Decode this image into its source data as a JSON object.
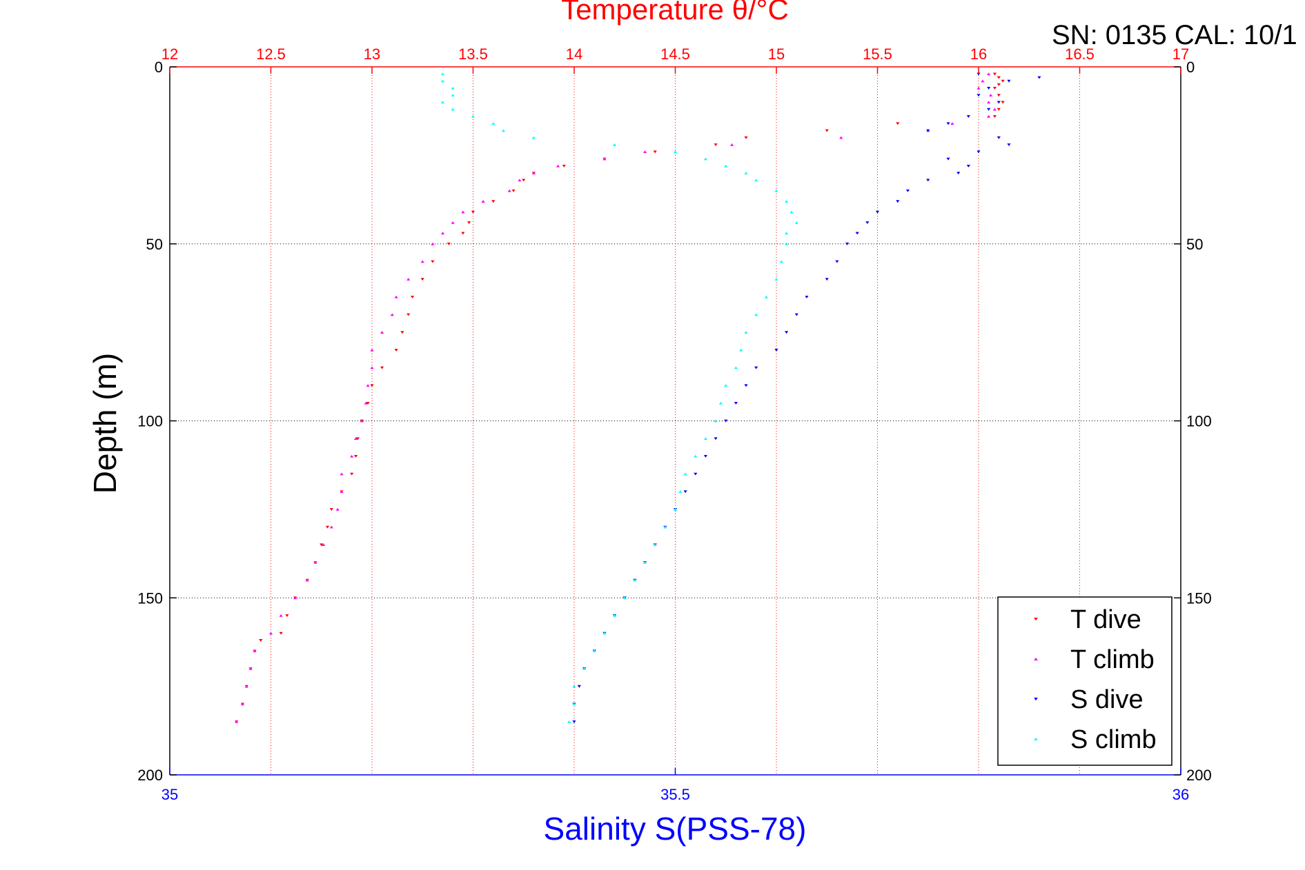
{
  "colors": {
    "temperature_axis": "#ff0000",
    "salinity_axis": "#0000ff",
    "depth_axis": "#000000",
    "t_dive": "#ff0000",
    "t_climb": "#ff00ff",
    "s_dive": "#0000ff",
    "s_climb": "#00ffff"
  },
  "chart_data": {
    "type": "scatter",
    "title": "Temperature θ/°C",
    "corner_label": "SN: 0135  CAL: 10/1",
    "xlabel_top": "Temperature θ/°C",
    "xlabel_bottom": "Salinity S(PSS-78)",
    "ylabel": "Depth (m)",
    "x_top_range": [
      12,
      17
    ],
    "x_top_ticks": [
      "12",
      "12.5",
      "13",
      "13.5",
      "14",
      "14.5",
      "15",
      "15.5",
      "16",
      "16.5",
      "17"
    ],
    "x_bottom_range": [
      35,
      36
    ],
    "x_bottom_ticks": [
      "35",
      "35.5",
      "36"
    ],
    "y_range": [
      0,
      200
    ],
    "y_reversed": true,
    "y_ticks": [
      "0",
      "50",
      "100",
      "150",
      "200"
    ],
    "grid": true,
    "legend_position": "bottom-right",
    "legend": [
      "T dive",
      "T climb",
      "S dive",
      "S climb"
    ],
    "series": [
      {
        "name": "T dive",
        "axis": "temperature",
        "marker": "triangle-down",
        "depth": [
          2,
          3,
          4,
          5,
          6,
          8,
          10,
          12,
          14,
          16,
          18,
          20,
          22,
          24,
          26,
          28,
          30,
          32,
          35,
          38,
          41,
          44,
          47,
          50,
          55,
          60,
          65,
          70,
          75,
          80,
          85,
          90,
          95,
          100,
          105,
          110,
          115,
          120,
          125,
          130,
          135,
          140,
          145,
          150,
          155,
          160,
          162,
          165,
          170,
          175,
          180,
          185
        ],
        "value": [
          16.08,
          16.1,
          16.12,
          16.1,
          16.08,
          16.1,
          16.12,
          16.1,
          16.08,
          15.6,
          15.25,
          14.85,
          14.7,
          14.4,
          14.15,
          13.95,
          13.8,
          13.75,
          13.7,
          13.6,
          13.5,
          13.48,
          13.45,
          13.38,
          13.3,
          13.25,
          13.2,
          13.18,
          13.15,
          13.12,
          13.05,
          13.0,
          12.98,
          12.95,
          12.93,
          12.92,
          12.9,
          12.85,
          12.8,
          12.78,
          12.75,
          12.72,
          12.68,
          12.62,
          12.58,
          12.55,
          12.45,
          12.42,
          12.4,
          12.38,
          12.36,
          12.33
        ]
      },
      {
        "name": "T climb",
        "axis": "temperature",
        "marker": "triangle-up",
        "depth": [
          185,
          180,
          175,
          170,
          165,
          160,
          155,
          150,
          145,
          140,
          135,
          130,
          125,
          120,
          115,
          110,
          105,
          100,
          95,
          90,
          85,
          80,
          75,
          70,
          65,
          60,
          55,
          50,
          47,
          44,
          41,
          38,
          35,
          32,
          30,
          28,
          26,
          24,
          22,
          20,
          18,
          16,
          14,
          12,
          10,
          8,
          6,
          4,
          2
        ],
        "value": [
          12.33,
          12.36,
          12.38,
          12.4,
          12.42,
          12.5,
          12.55,
          12.62,
          12.68,
          12.72,
          12.76,
          12.8,
          12.83,
          12.85,
          12.85,
          12.9,
          12.92,
          12.95,
          12.97,
          12.98,
          13.0,
          13.0,
          13.05,
          13.1,
          13.12,
          13.18,
          13.25,
          13.3,
          13.35,
          13.4,
          13.45,
          13.55,
          13.68,
          13.73,
          13.8,
          13.92,
          14.15,
          14.35,
          14.78,
          15.32,
          15.75,
          15.87,
          16.05,
          16.08,
          16.05,
          16.06,
          16.0,
          16.02,
          16.05
        ]
      },
      {
        "name": "S dive",
        "axis": "salinity",
        "marker": "triangle-down",
        "depth": [
          2,
          3,
          4,
          6,
          8,
          10,
          12,
          14,
          16,
          18,
          20,
          22,
          24,
          26,
          28,
          30,
          32,
          35,
          38,
          41,
          44,
          47,
          50,
          55,
          60,
          65,
          70,
          75,
          80,
          85,
          90,
          95,
          100,
          105,
          110,
          115,
          120,
          125,
          130,
          135,
          140,
          145,
          150,
          155,
          160,
          165,
          170,
          175,
          180,
          185
        ],
        "value": [
          35.8,
          35.86,
          35.83,
          35.81,
          35.8,
          35.82,
          35.81,
          35.79,
          35.77,
          35.75,
          35.82,
          35.83,
          35.8,
          35.77,
          35.79,
          35.78,
          35.75,
          35.73,
          35.72,
          35.7,
          35.69,
          35.68,
          35.67,
          35.66,
          35.65,
          35.63,
          35.62,
          35.61,
          35.6,
          35.58,
          35.57,
          35.56,
          35.55,
          35.54,
          35.53,
          35.52,
          35.51,
          35.5,
          35.49,
          35.48,
          35.47,
          35.46,
          35.45,
          35.44,
          35.43,
          35.42,
          35.41,
          35.405,
          35.4,
          35.4
        ]
      },
      {
        "name": "S climb",
        "axis": "salinity",
        "marker": "triangle-up",
        "depth": [
          185,
          180,
          175,
          170,
          165,
          160,
          155,
          150,
          145,
          140,
          135,
          130,
          125,
          120,
          115,
          110,
          105,
          100,
          95,
          90,
          85,
          80,
          75,
          70,
          65,
          60,
          55,
          50,
          47,
          44,
          41,
          38,
          35,
          32,
          30,
          28,
          26,
          24,
          22,
          20,
          18,
          16,
          14,
          12,
          10,
          8,
          6,
          4,
          2
        ],
        "value": [
          35.395,
          35.4,
          35.4,
          35.41,
          35.42,
          35.43,
          35.44,
          35.45,
          35.46,
          35.47,
          35.48,
          35.49,
          35.5,
          35.505,
          35.51,
          35.52,
          35.53,
          35.54,
          35.545,
          35.55,
          35.56,
          35.565,
          35.57,
          35.58,
          35.59,
          35.6,
          35.605,
          35.61,
          35.61,
          35.62,
          35.615,
          35.61,
          35.6,
          35.58,
          35.57,
          35.55,
          35.53,
          35.5,
          35.44,
          35.36,
          35.33,
          35.32,
          35.3,
          35.28,
          35.27,
          35.28,
          35.28,
          35.27,
          35.27
        ]
      }
    ]
  }
}
